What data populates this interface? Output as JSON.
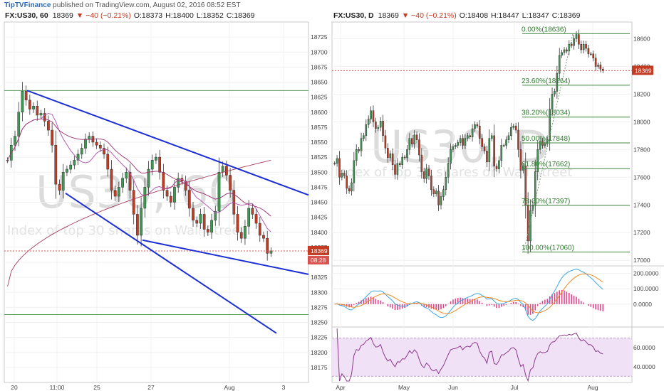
{
  "header": {
    "publisher": "TipTVFinance",
    "publish_text": " published on TradingView.com, August 02, 2016 08:52 EST"
  },
  "chart_data": [
    {
      "type": "candlestick",
      "title": "FX:US30, 60",
      "price": "18369",
      "change": "▼ −40 (−0.21%)",
      "ohlc": {
        "o": "O:18373",
        "h": "H:18400",
        "l": "L:18352",
        "c": "C:18369"
      },
      "watermark": "US30, 60",
      "watermark_sub": "Index of top 30 shares on Wall Street",
      "ylim": [
        18150,
        18750
      ],
      "yticks": [
        "18725",
        "18700",
        "18675",
        "18650",
        "18625",
        "18600",
        "18575",
        "18550",
        "18525",
        "18500",
        "18475",
        "18450",
        "18425",
        "18400",
        "18375",
        "18350",
        "18325",
        "18300",
        "18275",
        "18250",
        "18225",
        "18200",
        "18175"
      ],
      "xticks": [
        "20",
        "11:00",
        "25",
        "27",
        "Aug",
        "3"
      ],
      "last_price_label": "18369",
      "countdown_label": "08:28",
      "closes": [
        18520,
        18545,
        18560,
        18600,
        18635,
        18620,
        18605,
        18610,
        18595,
        18598,
        18585,
        18570,
        18545,
        18480,
        18470,
        18500,
        18505,
        18512,
        18520,
        18530,
        18540,
        18555,
        18560,
        18550,
        18545,
        18540,
        18530,
        18505,
        18470,
        18460,
        18475,
        18490,
        18500,
        18470,
        18430,
        18395,
        18440,
        18475,
        18505,
        18520,
        18525,
        18500,
        18470,
        18460,
        18450,
        18475,
        18490,
        18485,
        18470,
        18440,
        18420,
        18415,
        18430,
        18405,
        18400,
        18420,
        18435,
        18500,
        18510,
        18495,
        18470,
        18430,
        18400,
        18390,
        18410,
        18440,
        18430,
        18415,
        18395,
        18390,
        18365,
        18369
      ],
      "horizontal_levels": [
        18636,
        18263
      ],
      "trendlines_desc": [
        "upper descending channel line",
        "lower descending channel line",
        "falling wedge support line"
      ]
    },
    {
      "type": "candlestick",
      "title": "FX:US30, D",
      "price": "18369",
      "change": "▼ −40 (−0.21%)",
      "ohlc": {
        "o": "O:18408",
        "h": "H:18447",
        "l": "L:18347",
        "c": "C:18369"
      },
      "watermark": "US30, D",
      "watermark_sub": "Index of top 30 shares on Wall Street",
      "ylim": [
        16960,
        18720
      ],
      "yticks": [
        "18600",
        "18400",
        "18200",
        "18000",
        "17800",
        "17600",
        "17400",
        "17200",
        "17000"
      ],
      "xticks": [
        "Apr",
        "May",
        "Jun",
        "Jul",
        "Aug"
      ],
      "last_price_label": "18369",
      "fibonacci": [
        {
          "label": "0.00%(18636)",
          "value": 18636
        },
        {
          "label": "23.60%(18264)",
          "value": 18264
        },
        {
          "label": "38.20%(18034)",
          "value": 18034
        },
        {
          "label": "50.00%(17848)",
          "value": 17848
        },
        {
          "label": "61.80%(17662)",
          "value": 17662
        },
        {
          "label": "78.60%(17397)",
          "value": 17397
        },
        {
          "label": "100.00%(17060)",
          "value": 17060
        }
      ],
      "closes": [
        17700,
        17735,
        17600,
        17630,
        17610,
        17520,
        17500,
        17560,
        17720,
        17800,
        17790,
        17880,
        17900,
        17980,
        18020,
        18080,
        18000,
        17950,
        17960,
        18005,
        17900,
        17810,
        17740,
        17770,
        17690,
        17620,
        17700,
        17690,
        17745,
        17740,
        17800,
        17880,
        17840,
        17905,
        17870,
        17760,
        17640,
        17590,
        17660,
        17610,
        17510,
        17480,
        17500,
        17400,
        17460,
        17510,
        17600,
        17700,
        17800,
        17820,
        17830,
        17850,
        17880,
        17830,
        17880,
        17900,
        17890,
        17950,
        17980,
        17970,
        17880,
        17820,
        17790,
        17710,
        17880,
        17900,
        17680,
        17660,
        17720,
        17830,
        17830,
        17870,
        17900,
        17960,
        17970,
        17940,
        17800,
        17650,
        17680,
        17400,
        17140,
        17360,
        17400,
        17640,
        17800,
        17860,
        17830,
        17840,
        17870,
        18090,
        18200,
        18220,
        18350,
        18480,
        18500,
        18520,
        18510,
        18560,
        18550,
        18600,
        18630,
        18560,
        18520,
        18560,
        18530,
        18490,
        18490,
        18460,
        18400,
        18410,
        18380,
        18369
      ]
    },
    {
      "type": "line",
      "title": "",
      "ylim": [
        -140,
        240
      ],
      "yticks": [
        "200.0000",
        "100.0000",
        "0.0000"
      ],
      "series": [
        {
          "name": "",
          "color": "#3aa7e6",
          "kind": "line"
        },
        {
          "name": "",
          "color": "#f08a24",
          "kind": "line"
        },
        {
          "name": "",
          "color": "#e0458a",
          "kind": "histogram"
        }
      ]
    },
    {
      "type": "line",
      "title": "",
      "ylim": [
        25,
        80
      ],
      "yticks": [
        "60.0000",
        "40.0000"
      ],
      "band": [
        30,
        70
      ],
      "series": [
        {
          "name": "",
          "color": "#8b3a8b"
        }
      ]
    }
  ]
}
